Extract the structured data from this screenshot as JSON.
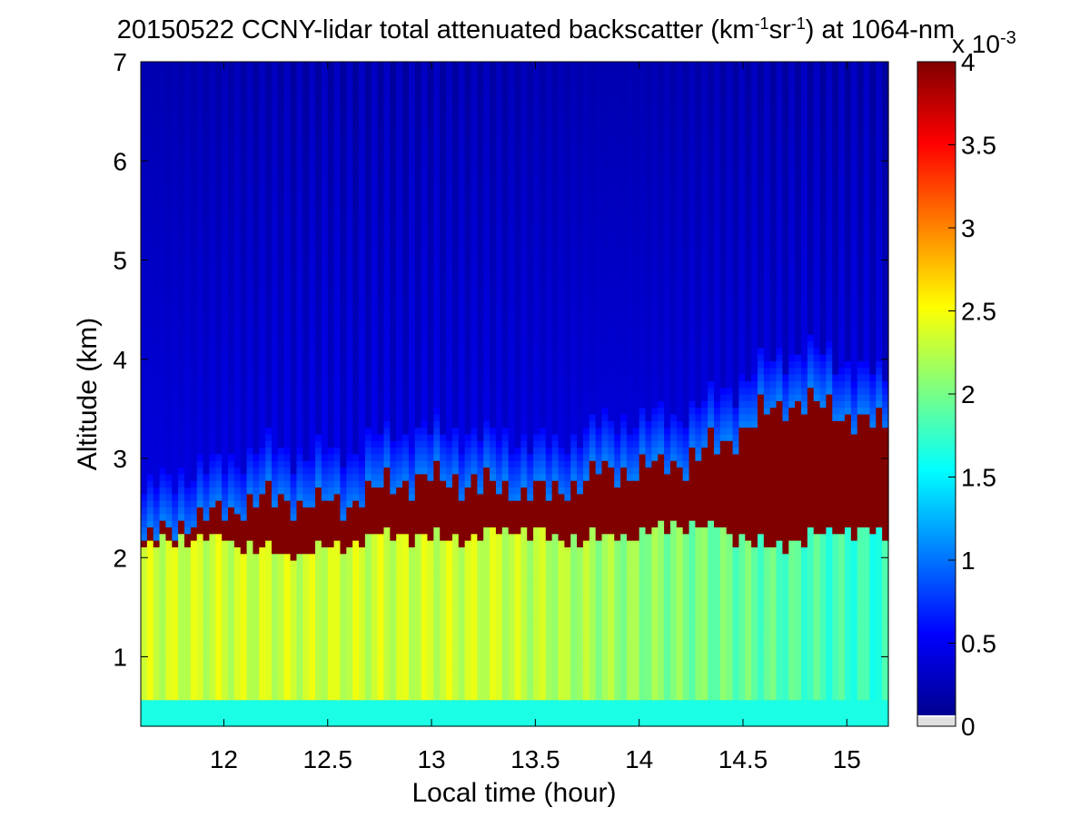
{
  "chart_data": {
    "type": "heatmap",
    "title": {
      "prefix": "20150522 CCNY-lidar total attenuated backscatter (km",
      "exp1": "-1",
      "mid": "sr",
      "exp2": "-1",
      "suffix": ") at 1064-nm"
    },
    "xlabel": "Local time (hour)",
    "ylabel": "Altitude (km)",
    "xlim": [
      11.6,
      15.2
    ],
    "ylim": [
      0.3,
      7
    ],
    "xticks": [
      12,
      12.5,
      13,
      13.5,
      14,
      14.5,
      15
    ],
    "xtick_labels": [
      "12",
      "12.5",
      "13",
      "13.5",
      "14",
      "14.5",
      "15"
    ],
    "yticks": [
      1,
      2,
      3,
      4,
      5,
      6,
      7
    ],
    "ytick_labels": [
      "1",
      "2",
      "3",
      "4",
      "5",
      "6",
      "7"
    ],
    "colorbar": {
      "colormap": "jet",
      "range": [
        0,
        4
      ],
      "ticks": [
        0,
        0.5,
        1,
        1.5,
        2,
        2.5,
        3,
        3.5,
        4
      ],
      "tick_labels": [
        "0",
        "0.5",
        "1",
        "1.5",
        "2",
        "2.5",
        "3",
        "3.5",
        "4"
      ],
      "multiplier_base": "x 10",
      "multiplier_exp": "-3",
      "units_note": "x 10^-3"
    },
    "grid": false,
    "features": {
      "aerosol_layer_top_km": [
        [
          11.6,
          2.1
        ],
        [
          11.8,
          2.2
        ],
        [
          12.0,
          2.2
        ],
        [
          12.2,
          2.05
        ],
        [
          12.4,
          2.05
        ],
        [
          12.6,
          2.15
        ],
        [
          12.8,
          2.25
        ],
        [
          13.0,
          2.2
        ],
        [
          13.2,
          2.2
        ],
        [
          13.4,
          2.3
        ],
        [
          13.6,
          2.2
        ],
        [
          13.8,
          2.2
        ],
        [
          14.0,
          2.25
        ],
        [
          14.2,
          2.35
        ],
        [
          14.4,
          2.3
        ],
        [
          14.6,
          2.1
        ],
        [
          14.8,
          2.2
        ],
        [
          15.0,
          2.3
        ],
        [
          15.2,
          2.2
        ]
      ],
      "cloud_top_km": [
        [
          11.6,
          2.15
        ],
        [
          11.8,
          2.35
        ],
        [
          12.0,
          2.45
        ],
        [
          12.2,
          2.6
        ],
        [
          12.4,
          2.55
        ],
        [
          12.6,
          2.55
        ],
        [
          12.8,
          2.75
        ],
        [
          13.0,
          2.8
        ],
        [
          13.2,
          2.75
        ],
        [
          13.4,
          2.7
        ],
        [
          13.6,
          2.65
        ],
        [
          13.8,
          2.85
        ],
        [
          14.0,
          2.9
        ],
        [
          14.2,
          2.95
        ],
        [
          14.4,
          3.15
        ],
        [
          14.6,
          3.45
        ],
        [
          14.8,
          3.6
        ],
        [
          15.0,
          3.45
        ],
        [
          15.2,
          3.3
        ]
      ],
      "near_surface_value": 1.6,
      "boundary_layer_value": 2.3,
      "free_troposphere_value": 0.35,
      "cloud_value": 4.0
    }
  }
}
